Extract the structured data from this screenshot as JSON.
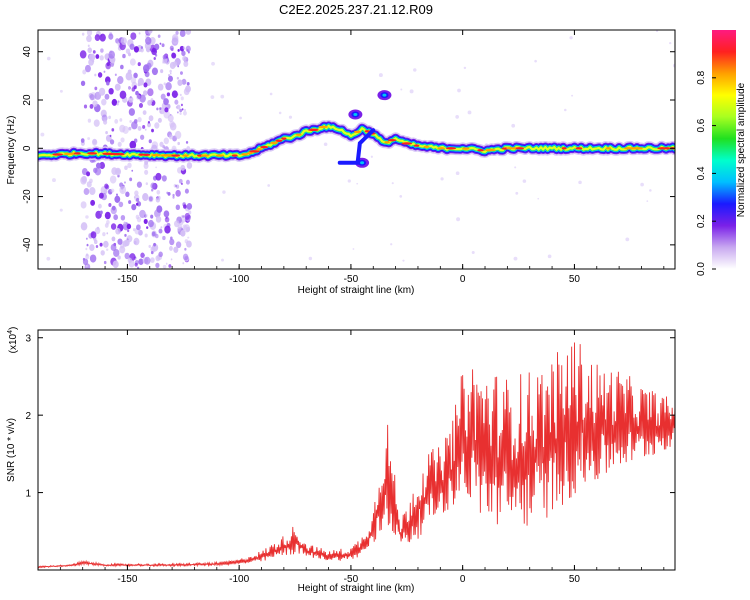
{
  "figure": {
    "title": "C2E2.2025.237.21.12.R09"
  },
  "chart_data": [
    {
      "type": "heatmap",
      "title": "C2E2.2025.237.21.12.R09",
      "xlabel": "Height of straight line (km)",
      "ylabel": "Frequency (Hz)",
      "xlim": [
        -190,
        95
      ],
      "ylim": [
        -50,
        49
      ],
      "xticks": [
        -150,
        -100,
        -50,
        0,
        50
      ],
      "yticks": [
        -40,
        -20,
        0,
        20,
        40
      ],
      "noise_band_x": [
        -170,
        -122
      ],
      "ridge": {
        "x": [
          -190,
          -170,
          -150,
          -130,
          -110,
          -100,
          -95,
          -90,
          -85,
          -80,
          -75,
          -70,
          -65,
          -62,
          -55,
          -50,
          -45,
          -40,
          -35,
          -30,
          -25,
          -20,
          -10,
          0,
          10,
          20,
          30,
          40,
          50,
          60,
          70,
          80,
          95
        ],
        "freq": [
          -3,
          -2,
          -2.5,
          -3,
          -3,
          -3,
          -2,
          0,
          2,
          4,
          5,
          7,
          8,
          9,
          8,
          5,
          8,
          6,
          2,
          4,
          2,
          1,
          0,
          0,
          -1,
          0,
          0,
          0,
          0,
          0,
          0,
          0,
          0
        ]
      },
      "secondary_features": [
        {
          "x": -45,
          "freq": -6
        },
        {
          "x": -48,
          "freq": 14
        },
        {
          "x": -35,
          "freq": 22
        }
      ],
      "colorbar": {
        "label": "Normalized spectral amplitude",
        "ticks": [
          "0.0",
          "0.2",
          "0.4",
          "0.6",
          "0.8"
        ],
        "range": [
          0,
          1
        ],
        "colors": [
          "#ffffff",
          "#c8a8f0",
          "#7a20e8",
          "#1a1aff",
          "#00bfff",
          "#00ffcc",
          "#20e020",
          "#a8ff20",
          "#ffff00",
          "#ffa000",
          "#ff2020",
          "#ff1a80"
        ]
      }
    },
    {
      "type": "line",
      "title": "",
      "xlabel": "Height of straight line (km)",
      "ylabel": "SNR (10 * v/v)",
      "y_scale_label": "(x10",
      "y_scale_exp": "4",
      "xlim": [
        -190,
        95
      ],
      "ylim": [
        0,
        3.1
      ],
      "xticks": [
        -150,
        -100,
        -50,
        0,
        50
      ],
      "yticks": [
        1,
        2,
        3
      ],
      "color": "#e83030",
      "envelope": {
        "x": [
          -190,
          -175,
          -170,
          -160,
          -130,
          -110,
          -100,
          -90,
          -80,
          -75,
          -70,
          -60,
          -50,
          -45,
          -40,
          -37,
          -34,
          -31,
          -28,
          -25,
          -20,
          -15,
          -10,
          -5,
          0,
          5,
          10,
          20,
          30,
          40,
          50,
          60,
          70,
          80,
          95
        ],
        "low": [
          0.03,
          0.05,
          0.07,
          0.05,
          0.05,
          0.06,
          0.07,
          0.1,
          0.18,
          0.2,
          0.17,
          0.12,
          0.12,
          0.18,
          0.3,
          0.4,
          0.55,
          0.45,
          0.35,
          0.3,
          0.4,
          0.6,
          0.7,
          0.8,
          0.95,
          0.8,
          0.6,
          0.5,
          0.55,
          0.7,
          0.95,
          1.1,
          1.3,
          1.4,
          1.6
        ],
        "high": [
          0.05,
          0.07,
          0.12,
          0.08,
          0.08,
          0.1,
          0.14,
          0.25,
          0.45,
          0.6,
          0.35,
          0.25,
          0.3,
          0.45,
          0.8,
          1.5,
          2.05,
          1.4,
          0.6,
          0.9,
          1.3,
          1.55,
          1.6,
          1.9,
          2.6,
          2.75,
          2.65,
          2.5,
          2.6,
          2.75,
          3.05,
          2.7,
          2.6,
          2.4,
          2.2
        ]
      }
    }
  ]
}
